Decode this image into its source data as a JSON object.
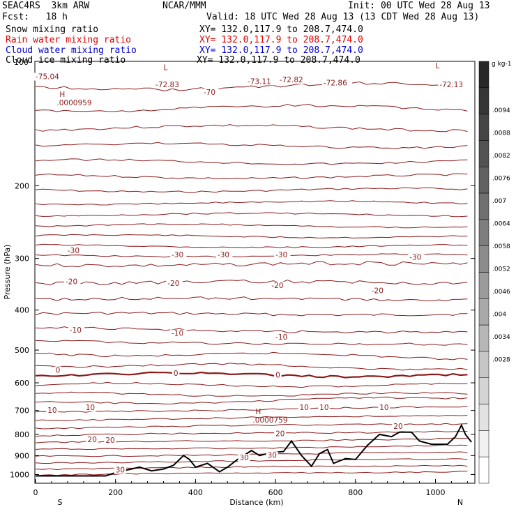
{
  "header": {
    "model": "SEAC4RS  3km ARW",
    "org": "NCAR/MMM",
    "init": "Init: 00 UTC Wed 28 Aug 13",
    "fcst": "Fcst:   18 h",
    "valid": "Valid: 18 UTC Wed 28 Aug 13 (13 CDT Wed 28 Aug 13)",
    "fields": [
      {
        "label": "Snow mixing ratio",
        "xy": "XY= 132.0,117.9 to 208.7,474.0",
        "color": "#000000"
      },
      {
        "label": "Rain water mixing ratio",
        "xy": "XY= 132.0,117.9 to 208.7,474.0",
        "color": "#e00000"
      },
      {
        "label": "Cloud water mixing ratio",
        "xy": "XY= 132.0,117.9 to 208.7,474.0",
        "color": "#0000d0"
      },
      {
        "label": "Cloud ice mixing ratio",
        "xy": "XY= 132.0,117.9 to 208.7,474.0",
        "color": "#000000"
      }
    ]
  },
  "chart_data": {
    "type": "contour",
    "xlabel": "Distance (km)",
    "ylabel": "Pressure (hPa)",
    "xlim": [
      0,
      1090
    ],
    "ylim": [
      1050,
      100
    ],
    "y_log_scale": true,
    "x_ticks": [
      0,
      200,
      400,
      600,
      800,
      1000
    ],
    "y_ticks": [
      200,
      300,
      400,
      500,
      600,
      700,
      800,
      900,
      1000
    ],
    "y_top_label": "100",
    "x_endpoints": {
      "left": "S",
      "right": "N"
    },
    "colorbar": {
      "unit": "g kg-1",
      "labels": [
        ".0094",
        ".0088",
        ".0082",
        ".0076",
        ".007",
        ".0064",
        ".0058",
        ".0052",
        ".0046",
        ".004",
        ".0034",
        ".0028"
      ]
    },
    "contour_labels": [
      {
        "text": "-75.04",
        "x": 0,
        "p": 110
      },
      {
        "text": "-72.83",
        "x": 300,
        "p": 115
      },
      {
        "text": "-70",
        "x": 420,
        "p": 120
      },
      {
        "text": "-73.11",
        "x": 530,
        "p": 113
      },
      {
        "text": "-72.82",
        "x": 610,
        "p": 112
      },
      {
        "text": "-72.86",
        "x": 720,
        "p": 114
      },
      {
        "text": "-72.13",
        "x": 1010,
        "p": 115
      },
      {
        "text": "-30",
        "x": 80,
        "p": 290
      },
      {
        "text": "-30",
        "x": 340,
        "p": 297
      },
      {
        "text": "-30",
        "x": 455,
        "p": 297
      },
      {
        "text": "-30",
        "x": 600,
        "p": 297
      },
      {
        "text": "-30",
        "x": 935,
        "p": 301
      },
      {
        "text": "-20",
        "x": 75,
        "p": 345
      },
      {
        "text": "-20",
        "x": 330,
        "p": 348
      },
      {
        "text": "-20",
        "x": 590,
        "p": 352
      },
      {
        "text": "-20",
        "x": 840,
        "p": 363
      },
      {
        "text": "-10",
        "x": 85,
        "p": 452
      },
      {
        "text": "-10",
        "x": 340,
        "p": 460
      },
      {
        "text": "-10",
        "x": 600,
        "p": 470
      },
      {
        "text": "0",
        "x": 50,
        "p": 565
      },
      {
        "text": "0",
        "x": 345,
        "p": 575
      },
      {
        "text": "0",
        "x": 600,
        "p": 580
      },
      {
        "text": "10",
        "x": 30,
        "p": 707
      },
      {
        "text": "10",
        "x": 125,
        "p": 695
      },
      {
        "text": "10",
        "x": 660,
        "p": 695
      },
      {
        "text": "10",
        "x": 710,
        "p": 695
      },
      {
        "text": "10",
        "x": 860,
        "p": 695
      },
      {
        "text": "20",
        "x": 130,
        "p": 832
      },
      {
        "text": "20",
        "x": 175,
        "p": 835
      },
      {
        "text": "20",
        "x": 600,
        "p": 804
      },
      {
        "text": "20",
        "x": 895,
        "p": 772
      },
      {
        "text": "30",
        "x": 510,
        "p": 920
      },
      {
        "text": "30",
        "x": 580,
        "p": 908
      },
      {
        "text": "30",
        "x": 200,
        "p": 985
      }
    ],
    "extrema": [
      {
        "type": "H",
        "value": ".0000959",
        "x": 60,
        "p": 122
      },
      {
        "type": "H",
        "value": ".0000759",
        "x": 550,
        "p": 715
      },
      {
        "type": "L",
        "value": "",
        "x": 320,
        "p": 105
      },
      {
        "type": "L",
        "value": "",
        "x": 1000,
        "p": 104
      }
    ]
  }
}
